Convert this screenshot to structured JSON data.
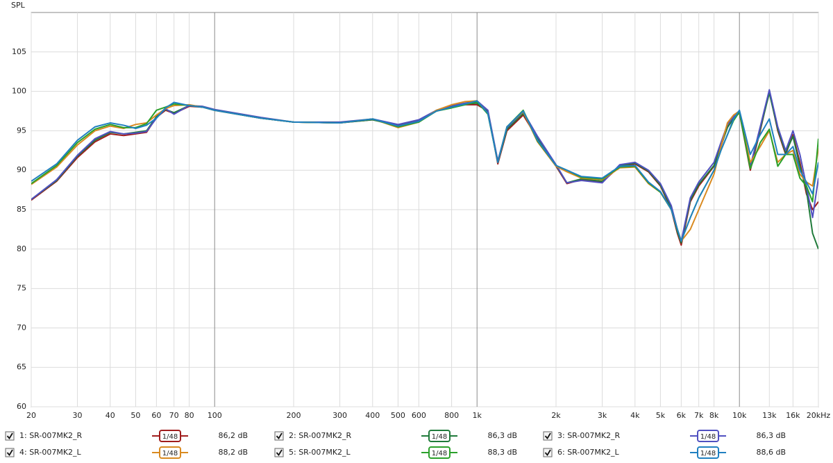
{
  "chart_data": {
    "type": "line",
    "y_label": "SPL",
    "log_x": true,
    "grid": true,
    "xlim": [
      20,
      20000
    ],
    "ylim": [
      60,
      110
    ],
    "xticks": [
      20,
      30,
      40,
      50,
      60,
      70,
      80,
      100,
      200,
      300,
      400,
      500,
      600,
      800,
      {
        "value": 1000,
        "label": "1k"
      },
      {
        "value": 2000,
        "label": "2k"
      },
      {
        "value": 3000,
        "label": "3k"
      },
      {
        "value": 4000,
        "label": "4k"
      },
      {
        "value": 5000,
        "label": "5k"
      },
      {
        "value": 6000,
        "label": "6k"
      },
      {
        "value": 7000,
        "label": "7k"
      },
      {
        "value": 8000,
        "label": "8k"
      },
      {
        "value": 10000,
        "label": "10k"
      },
      {
        "value": 13000,
        "label": "13k"
      },
      {
        "value": 16000,
        "label": "16k"
      },
      {
        "value": 20000,
        "label": "20kHz"
      }
    ],
    "yticks": [
      60,
      65,
      70,
      75,
      80,
      85,
      90,
      95,
      100,
      105
    ],
    "x": [
      20,
      25,
      30,
      35,
      40,
      45,
      50,
      55,
      60,
      65,
      70,
      80,
      90,
      100,
      150,
      200,
      300,
      400,
      500,
      600,
      700,
      800,
      900,
      1000,
      1100,
      1200,
      1300,
      1500,
      1700,
      2000,
      2200,
      2500,
      3000,
      3500,
      4000,
      4500,
      5000,
      5500,
      5800,
      6000,
      6500,
      7000,
      8000,
      8500,
      9000,
      9500,
      10000,
      11000,
      12000,
      13000,
      14000,
      15000,
      16000,
      17000,
      18000,
      19000,
      20000
    ],
    "series": [
      {
        "name": "1: SR-007MK2_R",
        "color": "#a01c1c",
        "smoothing": "1/48",
        "level": "86,2 dB",
        "values": [
          86.2,
          88.6,
          91.6,
          93.6,
          94.6,
          94.4,
          94.6,
          94.8,
          96.7,
          97.6,
          97.2,
          98.1,
          98.0,
          97.6,
          96.6,
          96.1,
          96.0,
          96.4,
          95.7,
          96.3,
          97.5,
          98.0,
          98.3,
          98.3,
          97.5,
          90.8,
          95.0,
          97.0,
          94.0,
          90.5,
          88.3,
          88.8,
          88.5,
          90.5,
          90.8,
          89.8,
          88.0,
          85.0,
          82.0,
          80.5,
          86.0,
          88.0,
          90.5,
          93.0,
          95.5,
          96.5,
          97.3,
          90.0,
          95.0,
          100.0,
          95.0,
          92.0,
          94.5,
          91.0,
          87.0,
          85.0,
          86.0
        ]
      },
      {
        "name": "2: SR-007MK2_R",
        "color": "#1f7a3a",
        "smoothing": "1/48",
        "level": "86,3 dB",
        "values": [
          86.3,
          88.7,
          91.8,
          93.8,
          94.8,
          94.6,
          94.8,
          95.0,
          96.8,
          97.7,
          97.3,
          98.2,
          98.0,
          97.6,
          96.6,
          96.1,
          96.0,
          96.4,
          95.6,
          96.2,
          97.5,
          98.1,
          98.4,
          98.5,
          97.4,
          91.0,
          95.2,
          97.2,
          94.1,
          90.6,
          88.4,
          88.9,
          88.6,
          90.6,
          90.9,
          89.9,
          88.1,
          85.2,
          82.2,
          80.8,
          86.2,
          88.2,
          90.6,
          93.1,
          95.4,
          96.6,
          97.4,
          90.3,
          95.2,
          99.8,
          95.2,
          92.2,
          94.3,
          90.5,
          87.5,
          82.0,
          80.0
        ]
      },
      {
        "name": "3: SR-007MK2_R",
        "color": "#5050c0",
        "smoothing": "1/48",
        "level": "86,3 dB",
        "values": [
          86.3,
          88.8,
          91.9,
          94.0,
          94.9,
          94.6,
          94.7,
          94.9,
          96.6,
          97.8,
          97.1,
          98.2,
          98.1,
          97.7,
          96.7,
          96.1,
          96.1,
          96.5,
          95.8,
          96.4,
          97.6,
          98.2,
          98.5,
          98.8,
          97.6,
          91.2,
          95.4,
          97.4,
          94.3,
          90.7,
          88.4,
          88.7,
          88.4,
          90.7,
          91.0,
          90.0,
          88.3,
          85.5,
          82.5,
          81.0,
          86.5,
          88.5,
          91.0,
          93.5,
          95.8,
          96.8,
          97.5,
          90.5,
          95.5,
          100.2,
          95.5,
          92.5,
          95.0,
          92.0,
          88.0,
          84.0,
          89.0
        ]
      },
      {
        "name": "4: SR-007MK2_L",
        "color": "#d98a20",
        "smoothing": "1/48",
        "level": "88,2 dB",
        "values": [
          88.2,
          90.4,
          93.2,
          95.0,
          95.6,
          95.3,
          95.8,
          96.0,
          97.0,
          97.8,
          98.2,
          98.3,
          98.0,
          97.6,
          96.6,
          96.1,
          96.0,
          96.5,
          95.4,
          96.1,
          97.6,
          98.3,
          98.7,
          98.8,
          97.2,
          91.0,
          95.5,
          97.4,
          93.6,
          90.5,
          89.8,
          89.0,
          88.8,
          90.3,
          90.4,
          88.3,
          87.2,
          85.0,
          82.5,
          81.0,
          82.5,
          85.0,
          89.5,
          93.0,
          96.0,
          97.0,
          97.5,
          91.0,
          93.0,
          95.0,
          91.0,
          92.0,
          92.5,
          89.5,
          88.5,
          88.0,
          92.8
        ]
      },
      {
        "name": "5: SR-007MK2_L",
        "color": "#2aa02a",
        "smoothing": "1/48",
        "level": "88,3 dB",
        "values": [
          88.3,
          90.6,
          93.5,
          95.2,
          95.8,
          95.4,
          95.4,
          95.9,
          97.6,
          98.0,
          98.4,
          98.2,
          98.0,
          97.6,
          96.6,
          96.1,
          96.0,
          96.5,
          95.5,
          96.1,
          97.5,
          97.9,
          98.3,
          98.7,
          97.1,
          91.0,
          95.5,
          97.6,
          93.7,
          90.6,
          90.0,
          89.1,
          88.9,
          90.4,
          90.5,
          88.4,
          87.2,
          85.0,
          82.5,
          81.0,
          84.0,
          86.5,
          90.0,
          92.5,
          94.5,
          96.3,
          97.4,
          90.2,
          93.5,
          95.2,
          90.5,
          92.0,
          92.0,
          89.0,
          88.0,
          86.0,
          94.0
        ]
      },
      {
        "name": "6: SR-007MK2_L",
        "color": "#2080c0",
        "smoothing": "1/48",
        "level": "88,6 dB",
        "values": [
          88.6,
          90.8,
          93.8,
          95.5,
          96.0,
          95.7,
          95.3,
          95.7,
          96.6,
          97.9,
          98.6,
          98.2,
          98.0,
          97.6,
          96.6,
          96.1,
          96.0,
          96.5,
          95.6,
          96.2,
          97.5,
          98.0,
          98.4,
          98.8,
          97.2,
          91.0,
          95.5,
          97.5,
          93.8,
          90.6,
          90.0,
          89.2,
          89.0,
          90.5,
          90.6,
          88.5,
          87.3,
          85.0,
          82.5,
          81.0,
          84.0,
          86.5,
          90.0,
          92.5,
          94.5,
          96.5,
          97.6,
          92.0,
          94.5,
          96.5,
          92.0,
          92.0,
          93.0,
          90.0,
          88.5,
          87.0,
          91.0
        ]
      }
    ]
  }
}
